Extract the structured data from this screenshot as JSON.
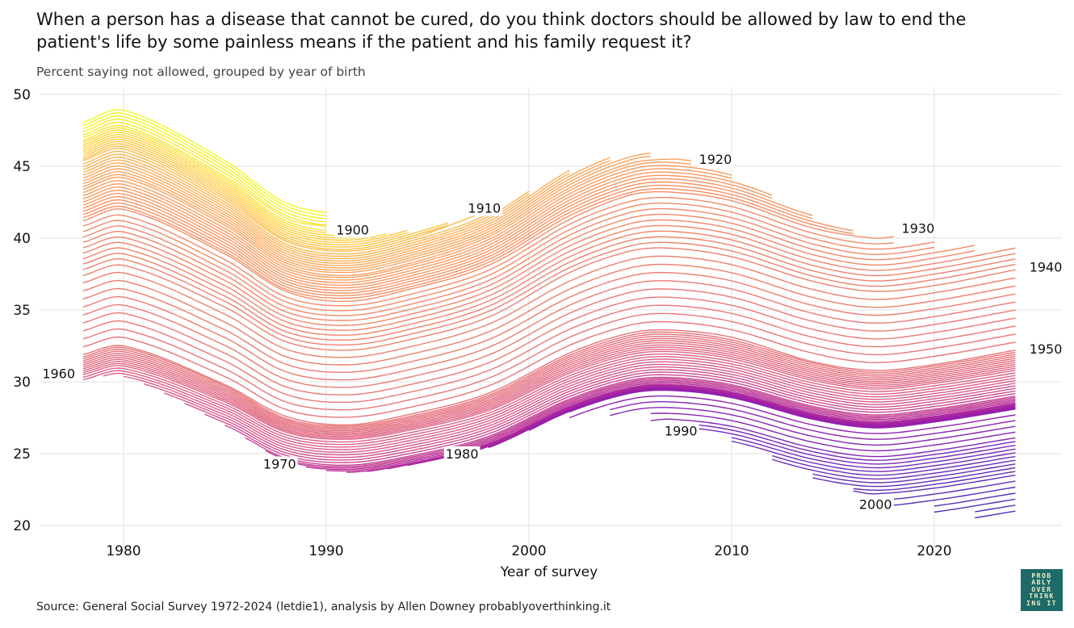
{
  "title": "When a person has a disease that cannot be cured, do you think doctors should be allowed by law to end the patient's life by some painless means if the patient and his family request it?",
  "subtitle": "Percent saying not allowed, grouped by year of birth",
  "source": "Source: General Social Survey 1972-2024 (letdie1), analysis by Allen Downey probablyoverthinking.it",
  "logo_text": "PROBABLYOVERTHINKING IT",
  "chart_data": {
    "type": "line",
    "xlabel": "Year of survey",
    "ylabel": "",
    "xlim": [
      1976,
      2026
    ],
    "ylim": [
      20,
      50
    ],
    "xticks": [
      1980,
      1990,
      2000,
      2010,
      2020
    ],
    "yticks": [
      20,
      25,
      30,
      35,
      40,
      45,
      50
    ],
    "grid": true,
    "legend": "none; series labelled inline by year of birth",
    "color_scale": {
      "oldest_cohort": "#f0f921",
      "middle_cohort": "#e77478",
      "youngest_cohort": "#4b32b4"
    },
    "series": [
      {
        "name": "1900",
        "x": [
          1978,
          1980,
          1985,
          1988,
          1990
        ],
        "y": [
          47.0,
          47.8,
          44.3,
          41.4,
          40.8
        ]
      },
      {
        "name": "1910",
        "x": [
          1978,
          1980,
          1985,
          1988,
          1991,
          1994,
          1998
        ],
        "y": [
          45.4,
          46.2,
          42.7,
          39.8,
          39.1,
          39.9,
          41.9
        ]
      },
      {
        "name": "1920",
        "x": [
          1978,
          1980,
          1985,
          1988,
          1991,
          1994,
          1998,
          2002,
          2005,
          2007,
          2008
        ],
        "y": [
          43.4,
          44.2,
          40.9,
          38.1,
          37.4,
          38.2,
          40.1,
          43.5,
          45.2,
          45.5,
          45.4
        ]
      },
      {
        "name": "1930",
        "x": [
          1978,
          1980,
          1985,
          1988,
          1991,
          1994,
          1998,
          2002,
          2005,
          2007,
          2010,
          2014,
          2017,
          2018
        ],
        "y": [
          41.2,
          42.0,
          38.9,
          36.3,
          35.6,
          36.4,
          38.1,
          41.3,
          43.0,
          43.2,
          42.6,
          40.7,
          40.0,
          40.1
        ]
      },
      {
        "name": "1940",
        "x": [
          1978,
          1980,
          1985,
          1988,
          1991,
          1994,
          1998,
          2002,
          2005,
          2007,
          2010,
          2014,
          2017,
          2020,
          2024
        ],
        "y": [
          37.4,
          38.1,
          35.2,
          32.8,
          32.2,
          32.9,
          34.5,
          37.6,
          39.1,
          39.3,
          38.7,
          37.0,
          36.3,
          36.7,
          37.8
        ]
      },
      {
        "name": "1950",
        "x": [
          1978,
          1980,
          1985,
          1988,
          1991,
          1994,
          1998,
          2002,
          2005,
          2007,
          2010,
          2014,
          2017,
          2020,
          2024
        ],
        "y": [
          31.9,
          32.5,
          29.8,
          27.6,
          27.0,
          27.7,
          29.2,
          32.0,
          33.4,
          33.6,
          33.1,
          31.4,
          30.8,
          31.2,
          32.2
        ]
      },
      {
        "name": "1960",
        "x": [
          1978,
          1980,
          1985,
          1988,
          1991,
          1994,
          1998,
          2002,
          2005,
          2007,
          2010,
          2014,
          2017,
          2020,
          2024
        ],
        "y": [
          30.5,
          31.1,
          28.6,
          26.5,
          26.0,
          26.6,
          28.0,
          30.6,
          31.9,
          32.1,
          31.6,
          30.1,
          29.5,
          29.9,
          30.8
        ]
      },
      {
        "name": "1970",
        "x": [
          1986,
          1988,
          1991,
          1994,
          1998,
          2002,
          2005,
          2007,
          2010,
          2014,
          2017,
          2020,
          2024
        ],
        "y": [
          26.1,
          24.7,
          24.2,
          24.8,
          26.2,
          28.8,
          30.1,
          30.3,
          29.8,
          28.3,
          27.7,
          28.1,
          29.0
        ]
      },
      {
        "name": "1980",
        "x": [
          1996,
          1998,
          2002,
          2005,
          2007,
          2010,
          2014,
          2017,
          2020,
          2024
        ],
        "y": [
          24.7,
          25.5,
          28.1,
          29.4,
          29.6,
          29.1,
          27.6,
          27.0,
          27.4,
          28.3
        ]
      },
      {
        "name": "1990",
        "x": [
          2006,
          2007,
          2010,
          2014,
          2017,
          2020,
          2024
        ],
        "y": [
          27.3,
          27.4,
          26.9,
          25.4,
          24.8,
          25.2,
          26.1
        ]
      },
      {
        "name": "2000",
        "x": [
          2016,
          2017,
          2020,
          2024
        ],
        "y": [
          22.4,
          22.2,
          22.6,
          23.5
        ]
      }
    ],
    "annotations": [
      {
        "text": "1900",
        "x": 1991.3,
        "y": 40.6
      },
      {
        "text": "1910",
        "x": 1997.8,
        "y": 42.1
      },
      {
        "text": "1920",
        "x": 2009.2,
        "y": 45.5
      },
      {
        "text": "1930",
        "x": 2019.2,
        "y": 40.7
      },
      {
        "text": "1940",
        "x": 2025.5,
        "y": 38.0
      },
      {
        "text": "1950",
        "x": 2025.5,
        "y": 32.3
      },
      {
        "text": "1960",
        "x": 1976.8,
        "y": 30.6
      },
      {
        "text": "1970",
        "x": 1987.7,
        "y": 24.3
      },
      {
        "text": "1980",
        "x": 1996.7,
        "y": 25.0
      },
      {
        "text": "1990",
        "x": 2007.5,
        "y": 26.6
      },
      {
        "text": "2000",
        "x": 2017.1,
        "y": 21.5
      }
    ]
  }
}
